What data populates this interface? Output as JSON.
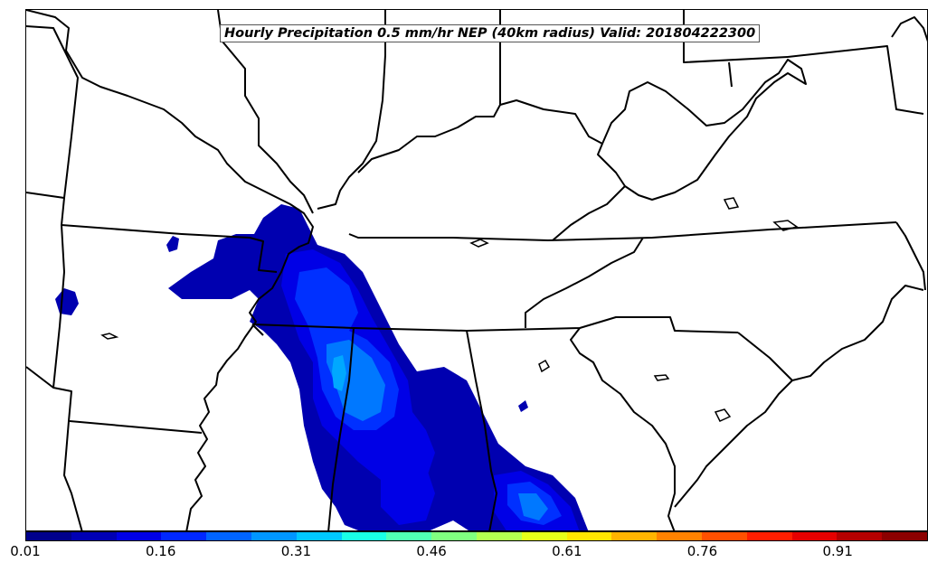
{
  "title": "Hourly Precipitation 0.5 mm/hr NEP (40km radius) Valid: 201804222300",
  "colorbar": {
    "colors": [
      "#00008c",
      "#0000b4",
      "#0000e6",
      "#0028ff",
      "#0064ff",
      "#0096ff",
      "#00c8ff",
      "#19ffe6",
      "#50ffb4",
      "#80ff80",
      "#b4ff50",
      "#e6ff19",
      "#ffe600",
      "#ffb400",
      "#ff8200",
      "#ff5000",
      "#ff1e00",
      "#e60000",
      "#b40000",
      "#8c0000"
    ],
    "tick_labels": [
      "0.01",
      "0.16",
      "0.31",
      "0.46",
      "0.61",
      "0.76",
      "0.91"
    ]
  },
  "precip_levels": {
    "outer": "#0000b0",
    "mid": "#0000e6",
    "inner": "#0030ff",
    "peak": "#0078ff",
    "max": "#00a8ff"
  }
}
